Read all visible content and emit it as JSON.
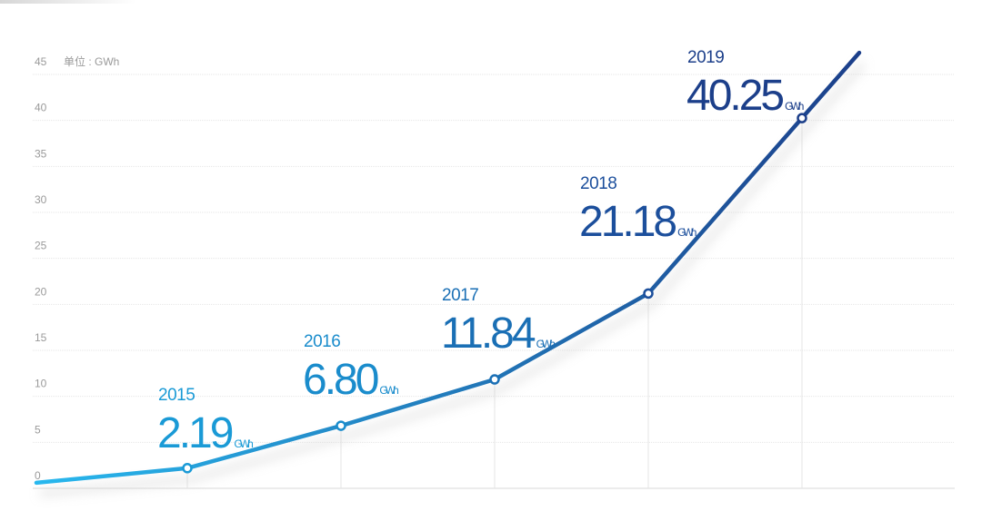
{
  "chart_data": {
    "type": "line",
    "unit_label": "单位 : GWh",
    "value_unit": "GWh",
    "ylim": [
      0,
      45
    ],
    "yticks": [
      "0",
      "5",
      "10",
      "15",
      "20",
      "25",
      "30",
      "35",
      "40",
      "45"
    ],
    "grid": true,
    "points": [
      {
        "year": "2015",
        "value": 2.19,
        "label": "2.19",
        "color": "#1a9ad6"
      },
      {
        "year": "2016",
        "value": 6.8,
        "label": "6.80",
        "color": "#1a8ccc"
      },
      {
        "year": "2017",
        "value": 11.84,
        "label": "11.84",
        "color": "#1a6fb5"
      },
      {
        "year": "2018",
        "value": 21.18,
        "label": "21.18",
        "color": "#1c4f9c"
      },
      {
        "year": "2019",
        "value": 40.25,
        "label": "40.25",
        "color": "#1c3f8a"
      }
    ],
    "line_gradient": [
      "#28b8ee",
      "#1c3f8a"
    ]
  }
}
